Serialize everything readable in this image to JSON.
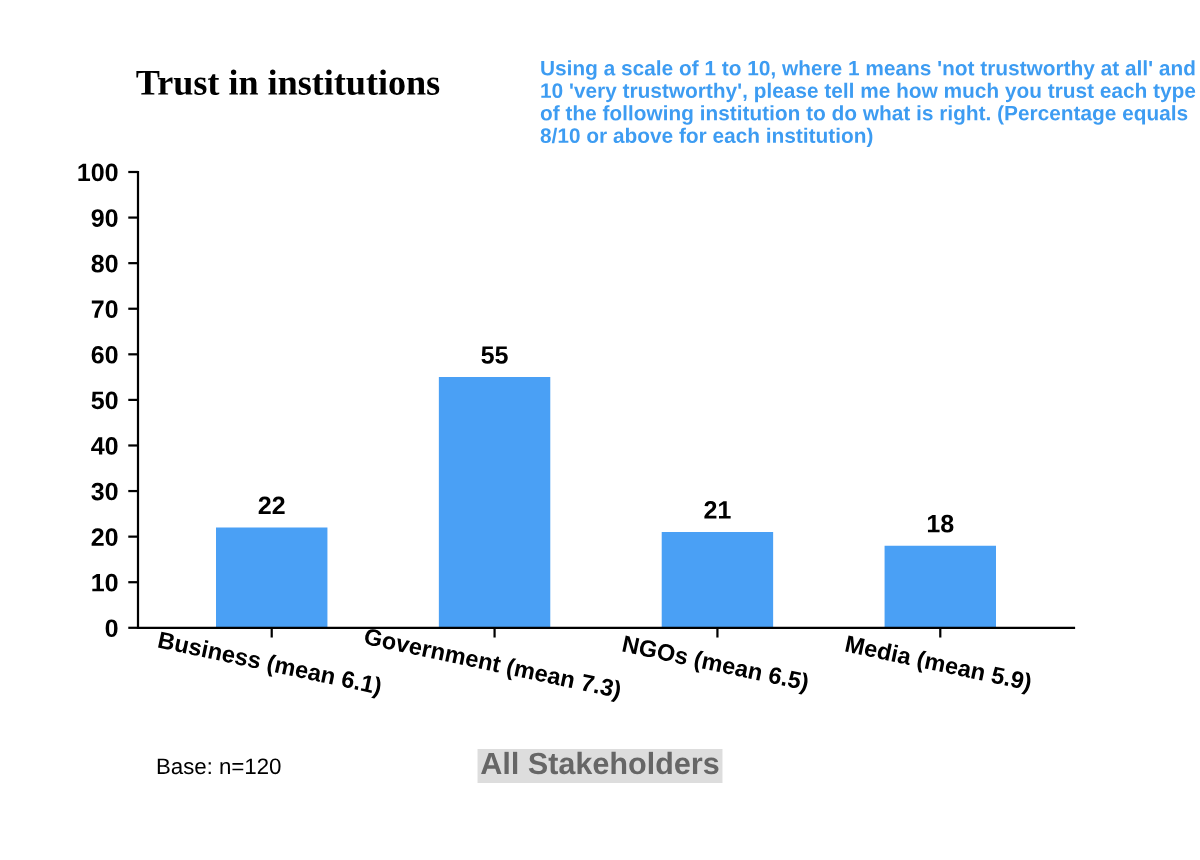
{
  "chart_data": {
    "type": "bar",
    "title": "Trust in institutions",
    "categories": [
      "Business (mean 6.1)",
      "Government (mean 7.3)",
      "NGOs (mean 6.5)",
      "Media (mean 5.9)"
    ],
    "values": [
      22,
      55,
      21,
      18
    ],
    "color": "#4aa0f5",
    "ylim": [
      0,
      100
    ],
    "yticks": [
      0,
      10,
      20,
      30,
      40,
      50,
      60,
      70,
      80,
      90,
      100
    ],
    "grid": false,
    "data_labels": true,
    "annotations": [
      "Using a scale of 1 to 10, where 1 means 'not trustworthy at all' and 10 'very trustworthy', please tell me how much you trust each type of the following institution to do what is right. (Percentage equals 8/10 or above for each institution)",
      "Base: n=120",
      "All Stakeholders"
    ]
  }
}
